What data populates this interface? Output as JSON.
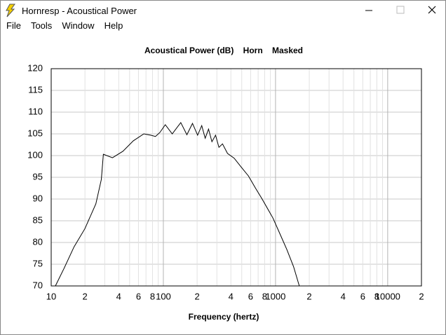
{
  "window": {
    "title": "Hornresp - Acoustical Power",
    "menu": [
      "File",
      "Tools",
      "Window",
      "Help"
    ]
  },
  "chart_data": {
    "type": "line",
    "title": "Acoustical Power (dB)    Horn    Masked",
    "xlabel": "Frequency (hertz)",
    "x": [
      10.9,
      13,
      16,
      20,
      25,
      28,
      29.2,
      35.2,
      43.6,
      54,
      67,
      77,
      85,
      93,
      104,
      120,
      143,
      162,
      182,
      202,
      220,
      236,
      253,
      271,
      292,
      313,
      337,
      373,
      428,
      496,
      574,
      660,
      760,
      950,
      1090,
      1260,
      1450,
      1630
    ],
    "values": [
      70,
      74,
      79,
      83.2,
      88.9,
      94.5,
      100.3,
      99.5,
      101,
      103.4,
      105,
      104.7,
      104.4,
      105.3,
      107.1,
      105,
      107.6,
      104.8,
      107.4,
      104.7,
      106.9,
      104,
      106.1,
      103.2,
      104.7,
      101.9,
      102.7,
      100.5,
      99.4,
      97.3,
      95.3,
      92.6,
      90,
      85.6,
      82.1,
      78.4,
      74.4,
      70
    ],
    "color": "#000000",
    "log_x": true,
    "grid": true,
    "xlim": [
      10,
      20000
    ],
    "xticks": [
      10,
      {
        "value": 20,
        "label": "2"
      },
      {
        "value": 40,
        "label": "4"
      },
      {
        "value": 60,
        "label": "6"
      },
      {
        "value": 80,
        "label": "8"
      },
      100,
      {
        "value": 200,
        "label": "2"
      },
      {
        "value": 400,
        "label": "4"
      },
      {
        "value": 600,
        "label": "6"
      },
      {
        "value": 800,
        "label": "8"
      },
      1000,
      {
        "value": 2000,
        "label": "2"
      },
      {
        "value": 4000,
        "label": "4"
      },
      {
        "value": 6000,
        "label": "6"
      },
      {
        "value": 8000,
        "label": "8"
      },
      10000,
      {
        "value": 20000,
        "label": "2"
      }
    ],
    "xminorticks": [
      30,
      50,
      70,
      90,
      300,
      500,
      700,
      900,
      3000,
      5000,
      7000,
      9000
    ],
    "ylim": [
      70,
      120
    ],
    "yticks": [
      70,
      75,
      80,
      85,
      90,
      95,
      100,
      105,
      110,
      115,
      120
    ]
  }
}
